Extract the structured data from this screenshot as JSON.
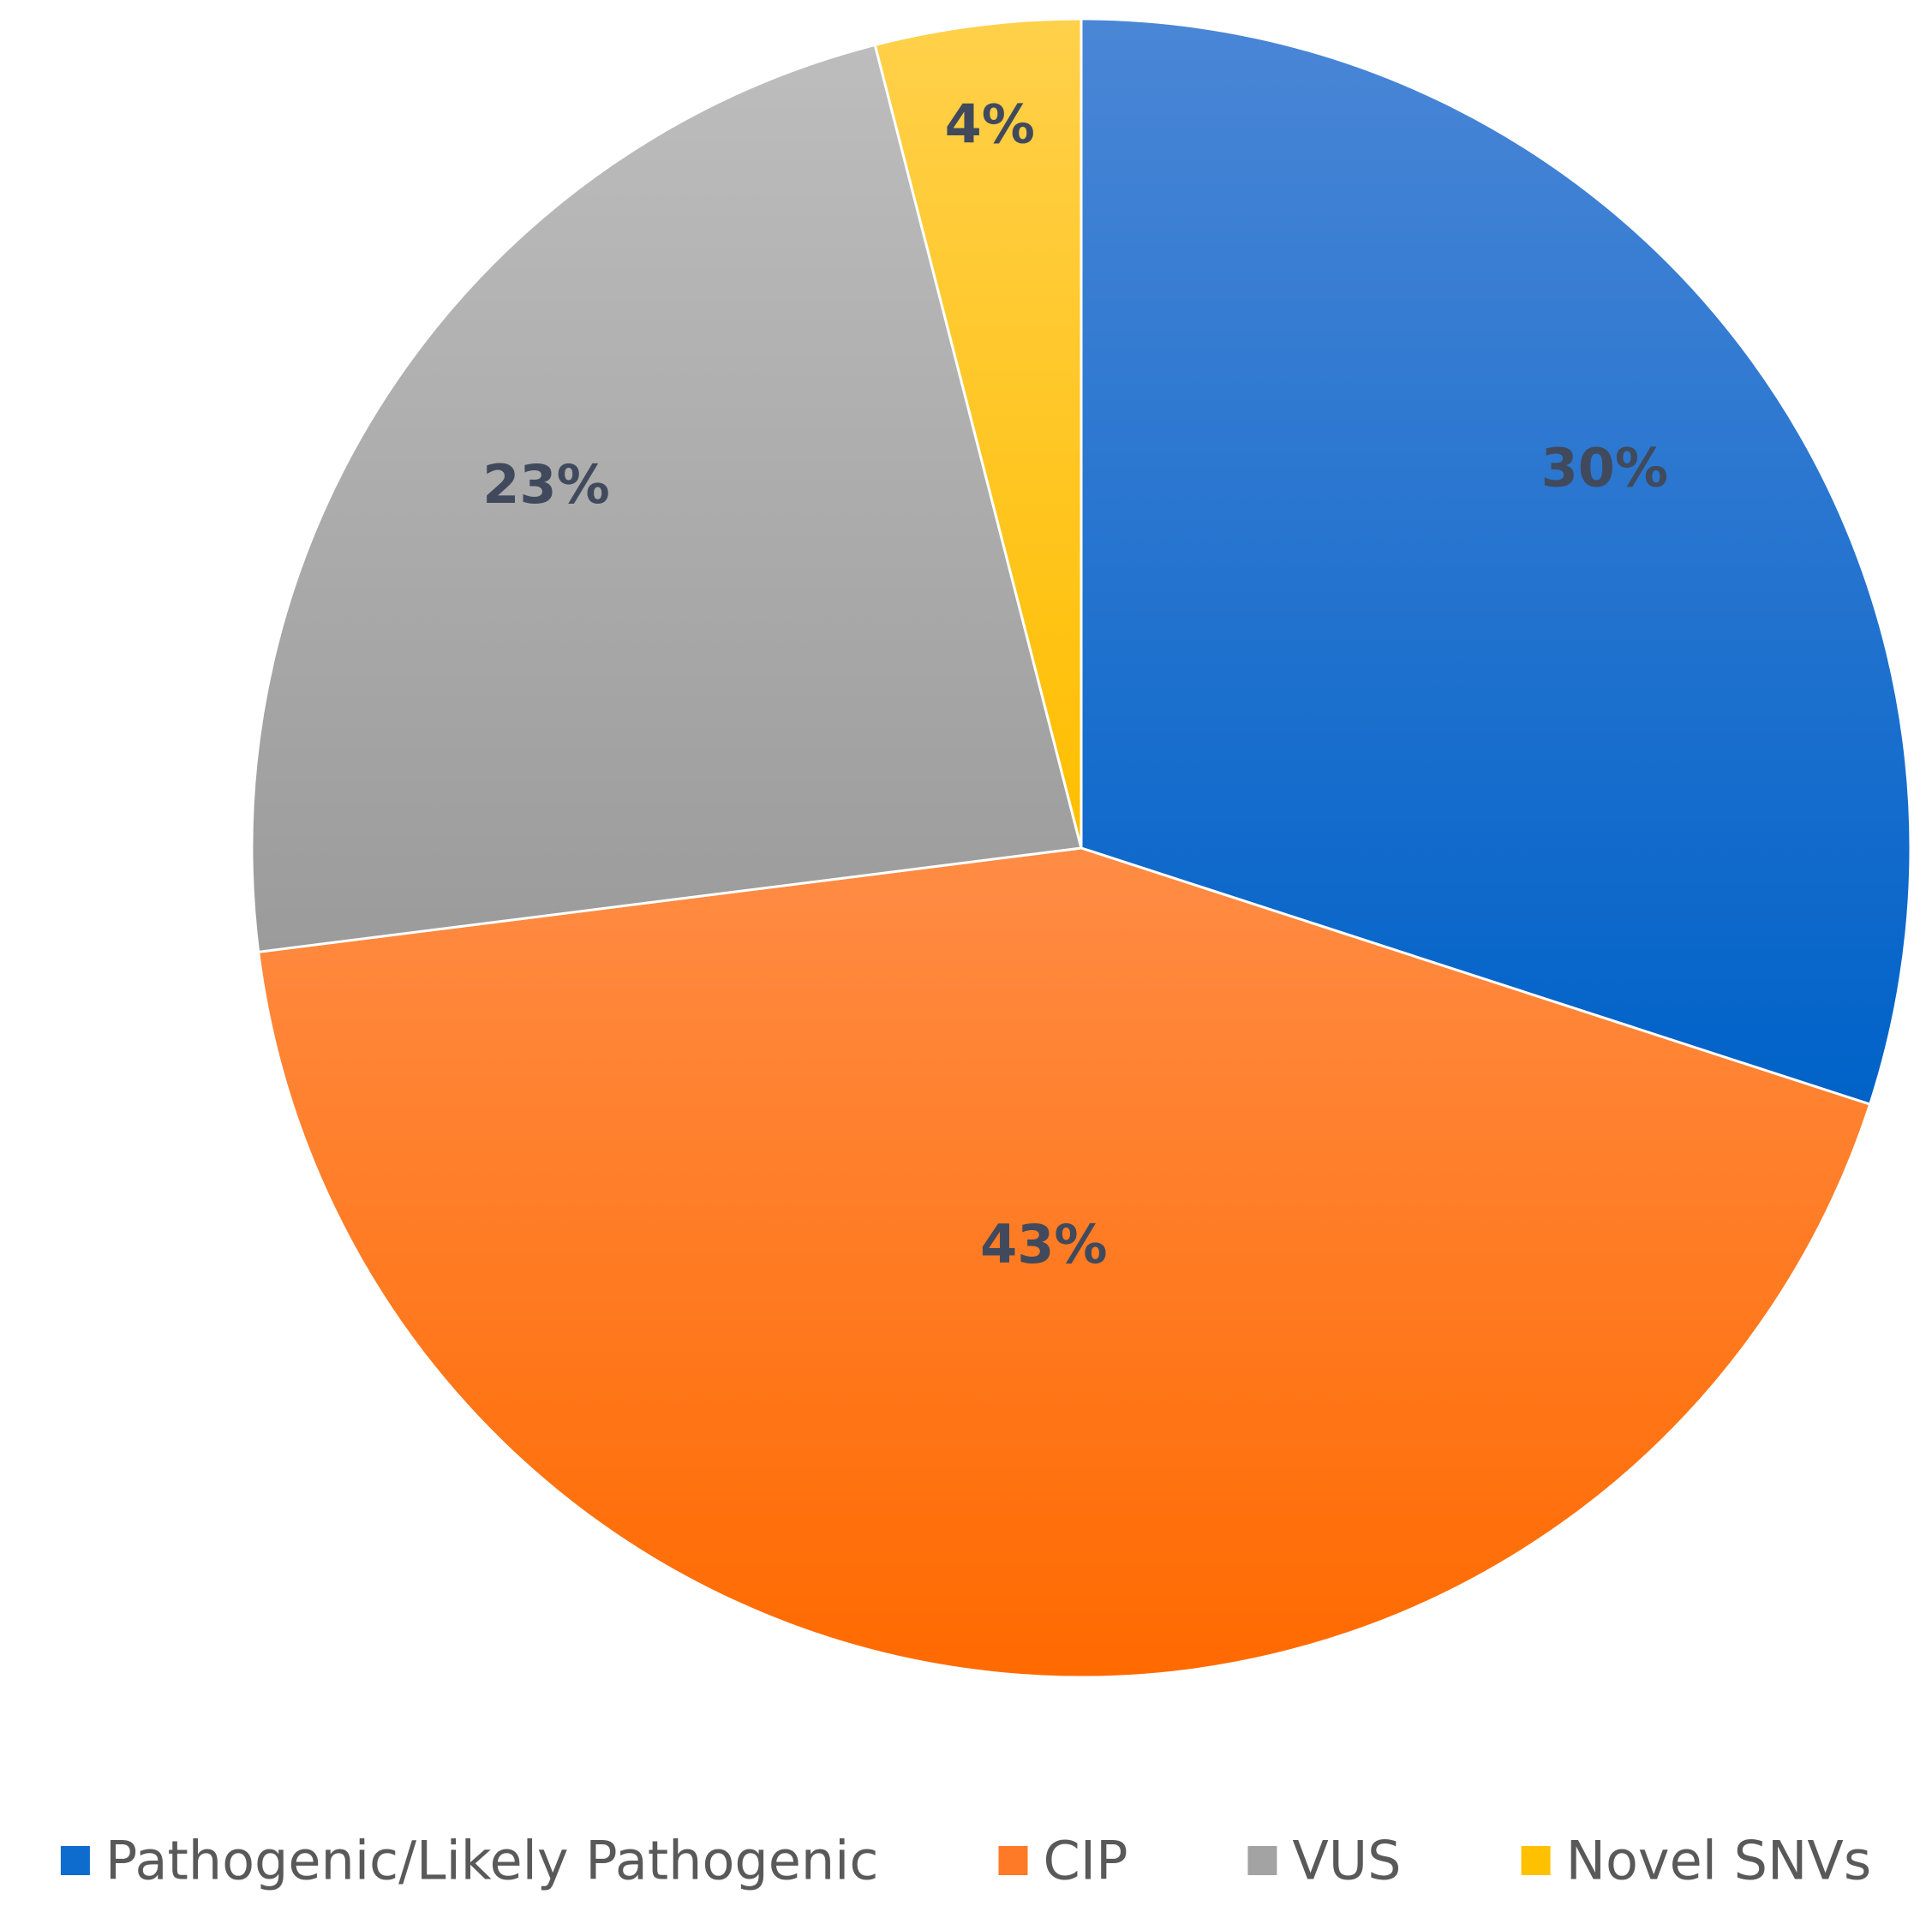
{
  "chart_data": {
    "type": "pie",
    "title": "",
    "slices": [
      {
        "label": "Pathogenic/Likely Pathogenic",
        "value": 30,
        "display": "30%",
        "color": "#0f6ccf"
      },
      {
        "label": "CIP",
        "value": 43,
        "display": "43%",
        "color": "#ff7a26"
      },
      {
        "label": "VUS",
        "value": 23,
        "display": "23%",
        "color": "#a3a3a3"
      },
      {
        "label": "Novel SNVs",
        "value": 4,
        "display": "4%",
        "color": "#ffc000"
      }
    ],
    "start_angle_deg": 0,
    "direction": "clockwise",
    "legend_position": "bottom"
  }
}
